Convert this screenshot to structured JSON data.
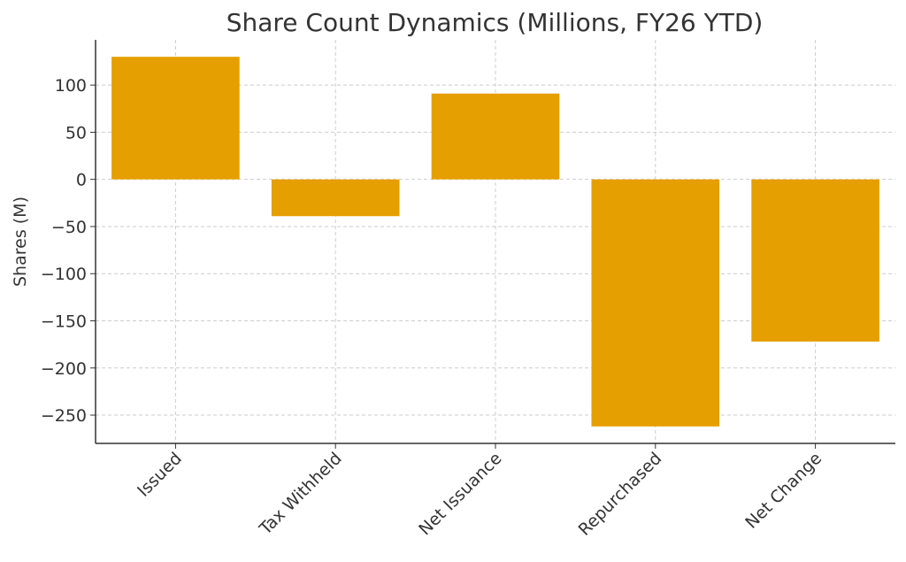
{
  "chart_data": {
    "type": "bar",
    "title": "Share Count Dynamics (Millions, FY26 YTD)",
    "xlabel": "",
    "ylabel": "Shares (M)",
    "categories": [
      "Issued",
      "Tax Withheld",
      "Net Issuance",
      "Repurchased",
      "Net Change"
    ],
    "values": [
      130,
      -39,
      91,
      -262,
      -172
    ],
    "ylim": [
      -280,
      148
    ],
    "yticks": [
      100,
      50,
      0,
      -50,
      -100,
      -150,
      -200,
      -250
    ],
    "ytick_labels": [
      "100",
      "50",
      "0",
      "−50",
      "−100",
      "−150",
      "−200",
      "−250"
    ],
    "grid": true,
    "legend": "none",
    "bar_color": "#E69F00"
  }
}
